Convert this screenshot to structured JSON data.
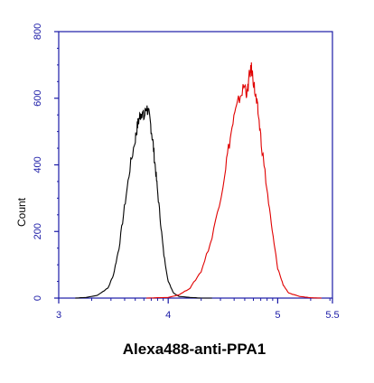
{
  "chart_data": {
    "type": "line",
    "title": "",
    "xlabel": "Alexa488-anti-PPA1",
    "ylabel": "Count",
    "xlim": [
      3.0,
      5.5
    ],
    "ylim": [
      0,
      800
    ],
    "x_ticks": [
      {
        "value": 3.0,
        "label": "3"
      },
      {
        "value": 4.0,
        "label": "4"
      },
      {
        "value": 5.0,
        "label": "5"
      },
      {
        "value": 5.5,
        "label": "5.5"
      }
    ],
    "y_ticks": [
      0,
      200,
      400,
      600,
      800
    ],
    "grid": false,
    "series": [
      {
        "color": "#000000",
        "x": [
          3.15,
          3.25,
          3.35,
          3.45,
          3.5,
          3.55,
          3.6,
          3.65,
          3.7,
          3.72,
          3.74,
          3.76,
          3.78,
          3.8,
          3.82,
          3.84,
          3.86,
          3.88,
          3.9,
          3.93,
          3.96,
          4.0,
          4.05,
          4.1,
          4.2,
          4.3,
          4.4
        ],
        "y": [
          0,
          2,
          8,
          30,
          70,
          150,
          270,
          390,
          480,
          520,
          545,
          560,
          540,
          575,
          555,
          520,
          470,
          400,
          330,
          230,
          130,
          50,
          15,
          5,
          2,
          0,
          0
        ]
      },
      {
        "color": "#e00000",
        "x": [
          3.8,
          4.0,
          4.1,
          4.2,
          4.3,
          4.4,
          4.5,
          4.55,
          4.6,
          4.65,
          4.7,
          4.72,
          4.74,
          4.76,
          4.78,
          4.8,
          4.82,
          4.85,
          4.9,
          4.95,
          5.0,
          5.05,
          5.1,
          5.2,
          5.3,
          5.4
        ],
        "y": [
          0,
          2,
          10,
          30,
          80,
          180,
          340,
          450,
          540,
          600,
          640,
          610,
          665,
          690,
          650,
          600,
          560,
          470,
          330,
          200,
          90,
          40,
          15,
          5,
          1,
          0
        ]
      }
    ]
  },
  "colors": {
    "axis": "#1a1aa6",
    "text": "#000000",
    "background": "#ffffff"
  }
}
